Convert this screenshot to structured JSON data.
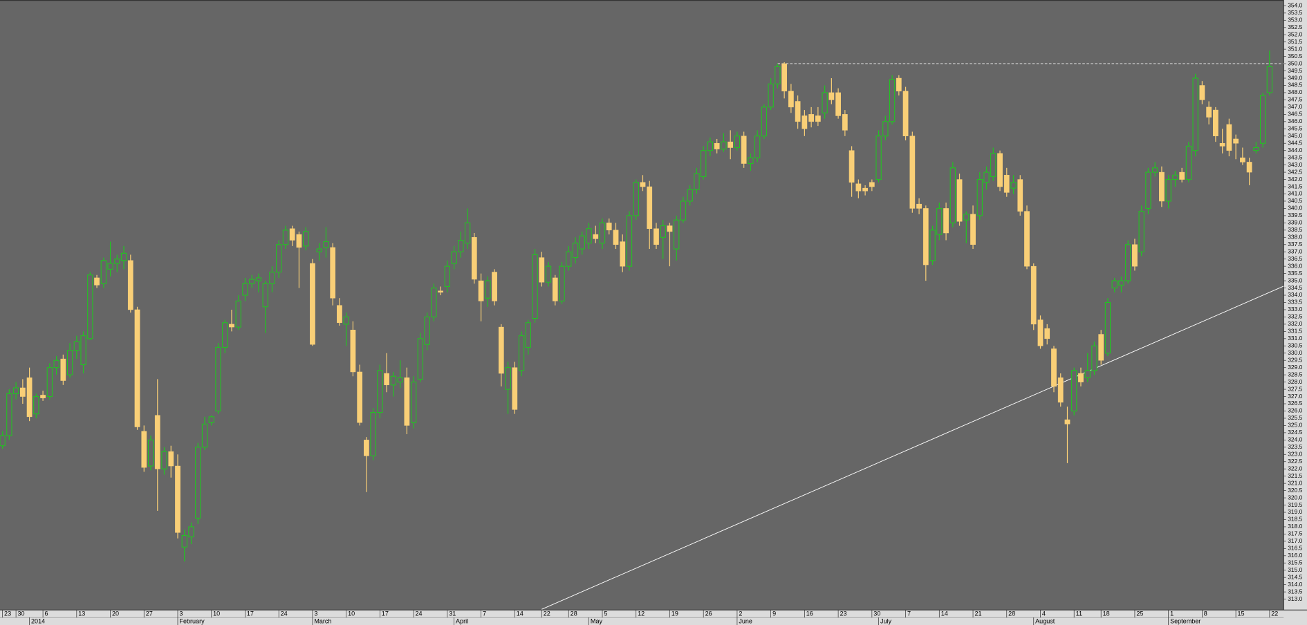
{
  "chart_data": {
    "type": "candlestick",
    "categories": [
      "23",
      null,
      "30",
      null,
      null,
      null,
      "6",
      null,
      null,
      null,
      null,
      "13",
      null,
      null,
      null,
      null,
      "20",
      null,
      null,
      null,
      null,
      "27",
      null,
      null,
      null,
      null,
      "3",
      null,
      null,
      null,
      null,
      "10",
      null,
      null,
      null,
      null,
      "17",
      null,
      null,
      null,
      null,
      "24",
      null,
      null,
      null,
      null,
      "3",
      null,
      null,
      null,
      null,
      "10",
      null,
      null,
      null,
      null,
      "17",
      null,
      null,
      null,
      null,
      "24",
      null,
      null,
      null,
      null,
      "31",
      null,
      null,
      null,
      null,
      "7",
      null,
      null,
      null,
      null,
      "14",
      null,
      null,
      null,
      "22",
      null,
      null,
      null,
      "28",
      null,
      null,
      null,
      null,
      "5",
      null,
      null,
      null,
      null,
      "12",
      null,
      null,
      null,
      null,
      "19",
      null,
      null,
      null,
      null,
      "26",
      null,
      null,
      null,
      null,
      "2",
      null,
      null,
      null,
      null,
      "9",
      null,
      null,
      null,
      null,
      "16",
      null,
      null,
      null,
      null,
      "23",
      null,
      null,
      null,
      null,
      "30",
      null,
      null,
      null,
      null,
      "7",
      null,
      null,
      null,
      null,
      "14",
      null,
      null,
      null,
      null,
      "21",
      null,
      null,
      null,
      null,
      "28",
      null,
      null,
      null,
      null,
      "4",
      null,
      null,
      null,
      null,
      "11",
      null,
      null,
      null,
      "18",
      null,
      null,
      null,
      null,
      "25",
      null,
      null,
      null,
      null,
      "1",
      null,
      null,
      null,
      null,
      "8",
      null,
      null,
      null,
      null,
      "15",
      null,
      null,
      null,
      null,
      "22"
    ],
    "months": [
      null,
      null,
      null,
      null,
      "2014",
      null,
      null,
      null,
      null,
      null,
      null,
      null,
      null,
      null,
      null,
      null,
      null,
      null,
      null,
      null,
      null,
      null,
      null,
      null,
      null,
      null,
      "February",
      null,
      null,
      null,
      null,
      null,
      null,
      null,
      null,
      null,
      null,
      null,
      null,
      null,
      null,
      null,
      null,
      null,
      null,
      null,
      "March",
      null,
      null,
      null,
      null,
      null,
      null,
      null,
      null,
      null,
      null,
      null,
      null,
      null,
      null,
      null,
      null,
      null,
      null,
      null,
      null,
      "April",
      null,
      null,
      null,
      null,
      null,
      null,
      null,
      null,
      null,
      null,
      null,
      null,
      null,
      null,
      null,
      null,
      null,
      null,
      null,
      "May",
      null,
      null,
      null,
      null,
      null,
      null,
      null,
      null,
      null,
      null,
      null,
      null,
      null,
      null,
      null,
      null,
      null,
      null,
      null,
      null,
      null,
      "June",
      null,
      null,
      null,
      null,
      null,
      null,
      null,
      null,
      null,
      null,
      null,
      null,
      null,
      null,
      null,
      null,
      null,
      null,
      null,
      null,
      "July",
      null,
      null,
      null,
      null,
      null,
      null,
      null,
      null,
      null,
      null,
      null,
      null,
      null,
      null,
      null,
      null,
      null,
      null,
      null,
      null,
      null,
      null,
      "August",
      null,
      null,
      null,
      null,
      null,
      null,
      null,
      null,
      null,
      null,
      null,
      null,
      null,
      null,
      null,
      null,
      null,
      null,
      null,
      "September",
      null,
      null,
      null,
      null,
      null,
      null,
      null,
      null,
      null,
      null,
      null,
      null,
      null,
      null,
      null
    ],
    "open": [
      323.6,
      324.3,
      327.2,
      327.6,
      328.3,
      325.8,
      327.1,
      327.0,
      329.0,
      329.6,
      328.5,
      330.2,
      329.2,
      331.0,
      335.2,
      334.8,
      335.8,
      336.2,
      336.4,
      336.4,
      333.0,
      324.6,
      322.2,
      325.7,
      322.0,
      323.2,
      322.2,
      316.6,
      317.3,
      318.6,
      323.5,
      325.2,
      326.0,
      330.4,
      332.0,
      331.8,
      334.0,
      334.8,
      335.0,
      333.2,
      334.8,
      335.6,
      337.5,
      338.6,
      338.2,
      337.4,
      336.2,
      337.0,
      337.3,
      337.3,
      333.3,
      332.0,
      331.6,
      328.7,
      324.0,
      322.9,
      325.9,
      328.6,
      327.8,
      328.0,
      328.3,
      325.2,
      328.2,
      330.6,
      332.5,
      334.3,
      334.6,
      336.2,
      337.0,
      337.6,
      338.0,
      335.0,
      333.8,
      335.6,
      331.8,
      327.5,
      329.0,
      328.8,
      330.4,
      332.4,
      336.6,
      334.9,
      335.2,
      333.6,
      336.0,
      336.6,
      337.2,
      337.6,
      338.2,
      337.6,
      339.0,
      338.5,
      337.7,
      336.0,
      339.5,
      341.8,
      341.5,
      338.6,
      338.0,
      338.8,
      337.2,
      339.2,
      340.5,
      341.3,
      342.2,
      344.0,
      344.5,
      344.1,
      344.6,
      344.2,
      345.0,
      343.1,
      343.5,
      345.0,
      347.0,
      348.6,
      350.0,
      348.1,
      347.4,
      346.4,
      346.5,
      346.4,
      346.6,
      348.0,
      348.0,
      346.5,
      344.0,
      341.7,
      341.4,
      341.8,
      342.0,
      345.0,
      346.0,
      349.0,
      348.1,
      345.0,
      340.3,
      340.0,
      336.4,
      338.2,
      340.0,
      339.0,
      342.0,
      339.2,
      339.6,
      339.5,
      341.8,
      342.2,
      343.8,
      342.3,
      341.4,
      342.0,
      339.8,
      336.0,
      332.3,
      331.7,
      330.3,
      328.3,
      325.4,
      326.0,
      328.6,
      328.3,
      328.8,
      331.3,
      330.0,
      334.5,
      334.7,
      335.0,
      337.5,
      337.0,
      340.0,
      342.5,
      342.5,
      340.5,
      342.0,
      342.5,
      342.0,
      344.0,
      348.5,
      347.0,
      346.8,
      344.5,
      345.8,
      344.8,
      343.5,
      343.2,
      344.0,
      344.5,
      348.0
    ],
    "high": [
      324.6,
      327.5,
      328.0,
      328.2,
      329.0,
      327.2,
      327.4,
      329.3,
      329.8,
      329.9,
      330.7,
      331.2,
      331.5,
      335.6,
      335.4,
      336.6,
      337.7,
      336.8,
      337.4,
      336.8,
      333.2,
      325.0,
      324.3,
      328.2,
      323.5,
      323.6,
      323.0,
      317.8,
      318.3,
      323.8,
      325.6,
      325.7,
      330.7,
      332.3,
      333.0,
      334.0,
      335.2,
      335.4,
      335.5,
      335.0,
      336.0,
      337.8,
      338.8,
      338.8,
      338.4,
      338.7,
      336.5,
      337.6,
      338.7,
      337.6,
      333.8,
      332.8,
      332.2,
      329.2,
      324.2,
      326.2,
      329.2,
      330.0,
      328.7,
      329.5,
      329.0,
      328.4,
      331.4,
      332.8,
      334.8,
      334.6,
      336.4,
      337.4,
      338.4,
      340.0,
      338.3,
      335.5,
      335.3,
      335.8,
      332.0,
      329.4,
      329.4,
      331.5,
      332.3,
      337.2,
      337.0,
      336.3,
      335.4,
      336.3,
      337.4,
      338.0,
      338.4,
      339.0,
      338.8,
      339.3,
      339.3,
      339.0,
      338.2,
      339.8,
      342.0,
      342.3,
      341.9,
      339.0,
      339.2,
      339.0,
      339.5,
      340.8,
      341.6,
      342.8,
      344.3,
      344.9,
      344.8,
      345.2,
      345.4,
      345.3,
      345.3,
      343.8,
      345.4,
      347.2,
      349.0,
      350.0,
      350.1,
      348.6,
      347.8,
      346.8,
      347.0,
      347.0,
      348.5,
      349.0,
      348.3,
      346.8,
      344.3,
      342.0,
      341.6,
      342.0,
      345.4,
      346.4,
      349.2,
      349.2,
      348.4,
      345.3,
      340.7,
      340.2,
      338.8,
      340.4,
      340.4,
      343.2,
      342.4,
      339.8,
      340.2,
      342.5,
      342.9,
      344.2,
      344.0,
      342.8,
      342.3,
      342.3,
      340.2,
      336.2,
      332.6,
      332.0,
      330.5,
      328.6,
      326.3,
      329.0,
      329.0,
      330.0,
      330.8,
      331.6,
      333.8,
      335.2,
      335.3,
      337.8,
      337.9,
      340.2,
      342.8,
      343.2,
      342.9,
      342.3,
      342.6,
      342.8,
      344.6,
      349.3,
      348.8,
      347.4,
      347.0,
      345.5,
      346.2,
      345.1,
      344.2,
      343.5,
      344.6,
      348.0,
      350.9
    ],
    "low": [
      323.4,
      324.0,
      326.8,
      326.5,
      325.3,
      325.5,
      326.7,
      326.8,
      328.5,
      327.8,
      328.3,
      329.6,
      328.6,
      330.9,
      334.5,
      334.5,
      335.3,
      335.6,
      335.8,
      332.8,
      324.7,
      321.8,
      321.9,
      319.1,
      321.6,
      321.4,
      317.2,
      315.6,
      316.8,
      318.2,
      323.3,
      325.0,
      325.8,
      330.0,
      331.5,
      331.6,
      333.6,
      334.5,
      334.2,
      331.4,
      334.2,
      335.2,
      337.2,
      337.4,
      334.5,
      337.1,
      330.5,
      336.4,
      336.6,
      333.3,
      331.9,
      330.5,
      328.4,
      325.0,
      320.4,
      322.6,
      325.5,
      327.3,
      327.0,
      327.6,
      324.4,
      324.8,
      328.0,
      330.2,
      332.2,
      334.0,
      334.2,
      335.8,
      336.6,
      337.2,
      334.8,
      332.2,
      333.2,
      333.3,
      327.7,
      325.8,
      325.8,
      328.4,
      329.9,
      332.1,
      334.6,
      334.6,
      333.3,
      333.4,
      335.7,
      336.2,
      336.8,
      337.2,
      337.6,
      337.2,
      338.2,
      337.2,
      335.6,
      335.7,
      339.2,
      341.2,
      337.2,
      337.2,
      336.5,
      336.0,
      336.4,
      339.0,
      340.2,
      341.0,
      342.0,
      343.6,
      343.8,
      343.9,
      343.4,
      344.0,
      342.8,
      342.6,
      343.2,
      344.8,
      346.8,
      348.3,
      347.6,
      346.6,
      345.5,
      345.0,
      345.6,
      345.7,
      346.2,
      347.2,
      346.2,
      345.0,
      340.8,
      340.7,
      340.9,
      341.2,
      341.8,
      344.7,
      345.8,
      347.8,
      344.7,
      339.7,
      339.6,
      335.0,
      336.1,
      337.8,
      337.8,
      338.7,
      338.8,
      337.6,
      337.2,
      339.2,
      341.3,
      341.9,
      341.2,
      340.8,
      341.0,
      339.5,
      335.8,
      331.6,
      330.3,
      330.6,
      327.3,
      326.3,
      322.4,
      325.7,
      327.7,
      328.0,
      328.5,
      329.2,
      329.8,
      334.2,
      334.2,
      334.8,
      335.7,
      336.7,
      339.6,
      342.2,
      340.1,
      340.0,
      341.5,
      341.8,
      341.8,
      343.6,
      347.2,
      345.8,
      344.6,
      343.8,
      343.6,
      343.4,
      343.0,
      341.6,
      343.8,
      344.2,
      347.8
    ],
    "close": [
      324.3,
      327.2,
      327.6,
      327.0,
      325.6,
      327.0,
      326.9,
      329.0,
      329.5,
      328.1,
      330.2,
      330.8,
      331.2,
      335.4,
      334.7,
      336.4,
      336.2,
      336.5,
      336.9,
      333.0,
      324.9,
      322.1,
      324.0,
      322.0,
      323.2,
      322.2,
      317.6,
      317.4,
      318.0,
      323.5,
      325.1,
      325.6,
      330.4,
      332.1,
      331.8,
      333.6,
      334.8,
      335.1,
      335.2,
      334.8,
      335.6,
      337.5,
      338.5,
      337.8,
      337.3,
      338.4,
      330.6,
      337.2,
      337.7,
      333.8,
      332.1,
      332.5,
      328.7,
      325.2,
      322.9,
      325.9,
      328.8,
      327.8,
      328.4,
      328.3,
      325.0,
      328.0,
      331.0,
      332.5,
      334.5,
      334.2,
      336.0,
      337.0,
      337.8,
      339.0,
      335.1,
      333.6,
      335.0,
      333.6,
      328.6,
      329.0,
      326.1,
      331.2,
      332.1,
      336.8,
      334.9,
      336.0,
      333.6,
      336.0,
      337.0,
      337.6,
      338.1,
      338.6,
      337.9,
      339.0,
      338.5,
      337.5,
      336.0,
      339.5,
      341.8,
      341.5,
      338.6,
      337.5,
      338.8,
      338.4,
      339.2,
      340.5,
      341.3,
      342.4,
      344.0,
      344.6,
      344.1,
      344.6,
      344.2,
      345.0,
      343.1,
      343.5,
      345.0,
      347.0,
      348.6,
      349.8,
      348.1,
      347.0,
      346.0,
      345.5,
      346.0,
      346.0,
      348.0,
      347.5,
      346.4,
      345.4,
      341.8,
      341.2,
      341.2,
      341.5,
      345.0,
      346.0,
      348.9,
      348.1,
      345.0,
      340.0,
      340.0,
      336.1,
      338.5,
      340.0,
      338.3,
      342.8,
      339.1,
      339.6,
      337.5,
      342.0,
      342.5,
      343.8,
      341.5,
      341.1,
      341.8,
      339.8,
      336.0,
      332.0,
      330.5,
      331.0,
      327.7,
      326.6,
      325.1,
      328.8,
      328.0,
      328.8,
      330.5,
      329.5,
      333.5,
      335.0,
      335.0,
      337.5,
      336.0,
      339.8,
      342.5,
      342.8,
      340.5,
      342.0,
      342.3,
      342.0,
      344.3,
      349.0,
      347.5,
      346.3,
      345.0,
      344.3,
      344.0,
      344.5,
      343.2,
      342.5,
      344.2,
      347.8,
      349.8
    ],
    "up_color": "#22c322",
    "down_color": "#f9cf77",
    "background": "#666666",
    "ylim": [
      312.25,
      354.4
    ],
    "yticks": [
      {
        "value": 313,
        "label": "313.0"
      },
      313.5,
      {
        "value": 314,
        "label": "314.0"
      },
      314.5,
      {
        "value": 315,
        "label": "315.0"
      },
      315.5,
      {
        "value": 316,
        "label": "316.0"
      },
      316.5,
      {
        "value": 317,
        "label": "317.0"
      },
      317.5,
      {
        "value": 318,
        "label": "318.0"
      },
      318.5,
      {
        "value": 319,
        "label": "319.0"
      },
      319.5,
      {
        "value": 320,
        "label": "320.0"
      },
      320.5,
      {
        "value": 321,
        "label": "321.0"
      },
      321.5,
      {
        "value": 322,
        "label": "322.0"
      },
      322.5,
      {
        "value": 323,
        "label": "323.0"
      },
      323.5,
      {
        "value": 324,
        "label": "324.0"
      },
      324.5,
      {
        "value": 325,
        "label": "325.0"
      },
      325.5,
      {
        "value": 326,
        "label": "326.0"
      },
      326.5,
      {
        "value": 327,
        "label": "327.0"
      },
      327.5,
      {
        "value": 328,
        "label": "328.0"
      },
      328.5,
      {
        "value": 329,
        "label": "329.0"
      },
      329.5,
      {
        "value": 330,
        "label": "330.0"
      },
      330.5,
      {
        "value": 331,
        "label": "331.0"
      },
      331.5,
      {
        "value": 332,
        "label": "332.0"
      },
      332.5,
      {
        "value": 333,
        "label": "333.0"
      },
      333.5,
      {
        "value": 334,
        "label": "334.0"
      },
      334.5,
      {
        "value": 335,
        "label": "335.0"
      },
      335.5,
      {
        "value": 336,
        "label": "336.0"
      },
      336.5,
      {
        "value": 337,
        "label": "337.0"
      },
      337.5,
      {
        "value": 338,
        "label": "338.0"
      },
      338.5,
      {
        "value": 339,
        "label": "339.0"
      },
      339.5,
      {
        "value": 340,
        "label": "340.0"
      },
      340.5,
      {
        "value": 341,
        "label": "341.0"
      },
      341.5,
      {
        "value": 342,
        "label": "342.0"
      },
      342.5,
      {
        "value": 343,
        "label": "343.0"
      },
      343.5,
      {
        "value": 344,
        "label": "344.0"
      },
      344.5,
      {
        "value": 345,
        "label": "345.0"
      },
      345.5,
      {
        "value": 346,
        "label": "346.0"
      },
      346.5,
      {
        "value": 347,
        "label": "347.0"
      },
      347.5,
      {
        "value": 348,
        "label": "348.0"
      },
      348.5,
      {
        "value": 349,
        "label": "349.0"
      },
      349.5,
      {
        "value": 350,
        "label": "350.0"
      },
      350.5,
      {
        "value": 351,
        "label": "351.0"
      },
      351.5,
      {
        "value": 352,
        "label": "352.0"
      },
      352.5,
      {
        "value": 353,
        "label": "353.0"
      },
      353.5,
      {
        "value": 354,
        "label": "354.0"
      }
    ],
    "grid": false,
    "resistance": {
      "start": 115,
      "value": 350
    },
    "trend_line": {
      "x": [
        80,
        188
      ],
      "y": [
        312.3,
        334.2
      ]
    }
  }
}
